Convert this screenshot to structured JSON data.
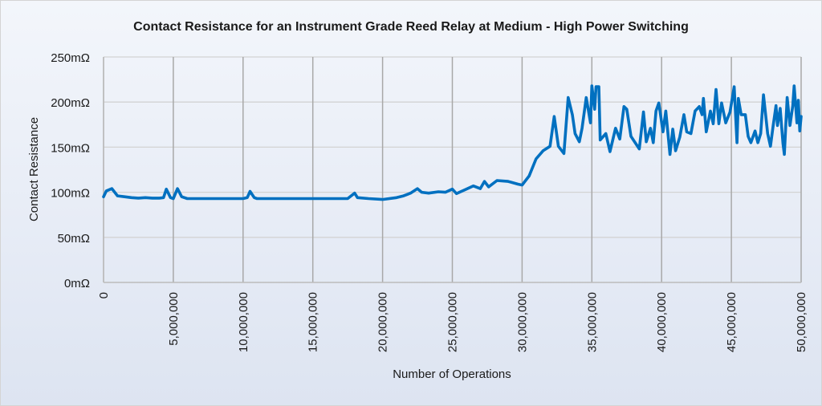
{
  "chart_data": {
    "type": "line",
    "title": "Contact Resistance for an Instrument Grade Reed Relay at Medium - High Power Switching",
    "xlabel": "Number of Operations",
    "ylabel": "Contact Resistance",
    "xlim": [
      0,
      50000000
    ],
    "ylim": [
      0,
      250
    ],
    "x_ticks": [
      "0",
      "5,000,000",
      "10,000,000",
      "15,000,000",
      "20,000,000",
      "25,000,000",
      "30,000,000",
      "35,000,000",
      "40,000,000",
      "45,000,000",
      "50,000,000"
    ],
    "y_ticks": [
      "0mΩ",
      "50mΩ",
      "100mΩ",
      "150mΩ",
      "200mΩ",
      "250mΩ"
    ],
    "grid": true,
    "legend": "none",
    "line_color": "#0070C0",
    "x_unit": "operations (millions)",
    "series": [
      {
        "x": [
          0,
          0.2,
          0.6,
          1.0,
          1.5,
          2.0,
          2.5,
          3.0,
          3.5,
          4.0,
          4.3,
          4.5,
          4.8,
          5.0,
          5.3,
          5.6,
          6,
          7,
          8,
          9,
          10,
          10.3,
          10.5,
          10.8,
          11,
          12,
          13,
          14,
          15,
          16,
          17,
          17.5,
          18.0,
          18.2,
          19,
          20,
          21,
          21.5,
          22.0,
          22.5,
          22.8,
          23.3,
          24,
          24.5,
          25,
          25.3,
          26,
          26.5,
          27,
          27.3,
          27.6,
          28.2,
          29,
          29.7,
          30.0,
          30.5,
          31.0,
          31.5,
          32.0,
          32.3,
          32.6,
          33.0,
          33.3,
          33.6,
          33.8,
          34.1,
          34.3,
          34.6,
          34.9,
          35.0,
          35.2,
          35.3,
          35.5,
          35.6,
          36.0,
          36.3,
          36.7,
          37.0,
          37.3,
          37.5,
          37.8,
          38.1,
          38.4,
          38.7,
          38.9,
          39.2,
          39.4,
          39.6,
          39.8,
          40.1,
          40.3,
          40.6,
          40.8,
          41.0,
          41.3,
          41.6,
          41.8,
          42.1,
          42.4,
          42.7,
          42.9,
          43.0,
          43.2,
          43.5,
          43.7,
          43.9,
          44.1,
          44.3,
          44.6,
          44.9,
          45.2,
          45.4,
          45.5,
          45.7,
          46.0,
          46.2,
          46.4,
          46.7,
          46.9,
          47.1,
          47.3,
          47.6,
          47.8,
          48.0,
          48.2,
          48.3,
          48.5,
          48.7,
          48.8,
          49.0,
          49.2,
          49.4,
          49.5,
          49.7,
          49.8,
          49.9,
          50.0
        ],
        "y": [
          95,
          101.5,
          104,
          96,
          95,
          94,
          93.5,
          94,
          93.5,
          93.5,
          94,
          103.5,
          94,
          93,
          104,
          95,
          93,
          93,
          93,
          93,
          93,
          94,
          101,
          94,
          93,
          93,
          93,
          93,
          93,
          93,
          93,
          93,
          99,
          94,
          93,
          92,
          94,
          96,
          99,
          104,
          100,
          99,
          100.5,
          100,
          103.5,
          98.5,
          103.5,
          107,
          104,
          112,
          106,
          113,
          112,
          109,
          108,
          118,
          137,
          146,
          151,
          184,
          151,
          143,
          205,
          186,
          165,
          156,
          171,
          205,
          177,
          218,
          192,
          217,
          217,
          158,
          165,
          145,
          171,
          159,
          195,
          192,
          162,
          155,
          148,
          189,
          156,
          171,
          155,
          190,
          199,
          167,
          190,
          142,
          170,
          146,
          161,
          186,
          167,
          165,
          190,
          195,
          186,
          204,
          167,
          190,
          176,
          214,
          176,
          199,
          177,
          189,
          217,
          155,
          204,
          186,
          186,
          162,
          155,
          168,
          155,
          165,
          208,
          165,
          151,
          174,
          196,
          174,
          193,
          154,
          142,
          205,
          174,
          196,
          218,
          177,
          202,
          168,
          184
        ]
      }
    ]
  }
}
